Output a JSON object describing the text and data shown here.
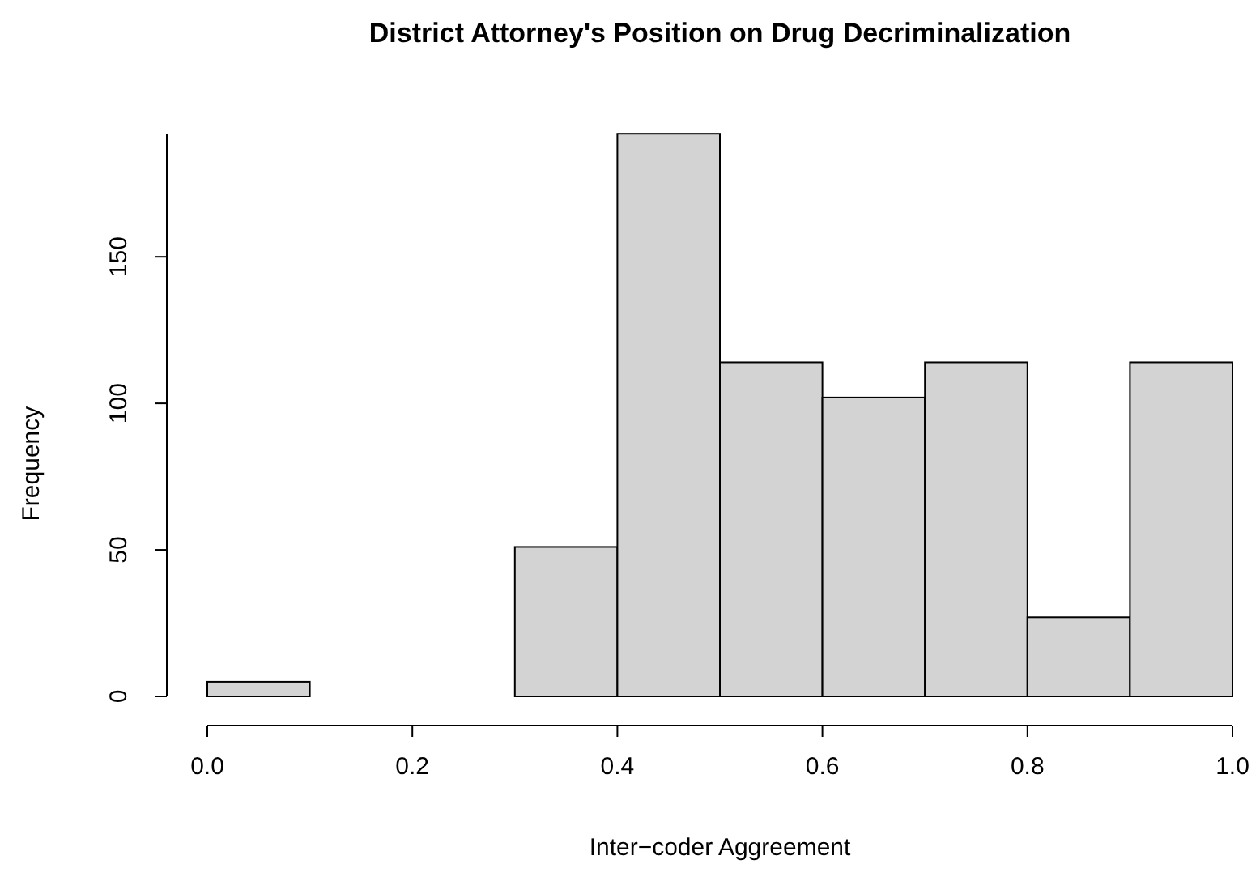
{
  "chart_data": {
    "type": "histogram",
    "title": "District Attorney's Position on Drug Decriminalization",
    "xlabel": "Inter−coder Aggreement",
    "ylabel": "Frequency",
    "bins": [
      0,
      0.1,
      0.2,
      0.3,
      0.4,
      0.5,
      0.6,
      0.7,
      0.8,
      0.9,
      1.0
    ],
    "values": [
      5,
      0,
      0,
      51,
      192,
      114,
      102,
      114,
      27,
      114
    ],
    "color": "#d3d3d3",
    "xlim": [
      0,
      1
    ],
    "xticks": [
      {
        "value": 0,
        "label": "0.0"
      },
      0.2,
      0.4,
      0.6,
      0.8,
      {
        "value": 1,
        "label": "1.0"
      }
    ],
    "ylim": [
      0,
      192
    ],
    "yticks": [
      0,
      50,
      100,
      150
    ]
  }
}
